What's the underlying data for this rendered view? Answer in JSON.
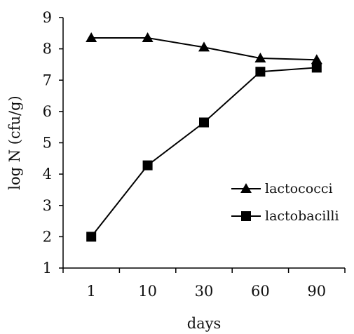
{
  "chart_data": {
    "type": "line",
    "categories": [
      "1",
      "10",
      "30",
      "60",
      "90"
    ],
    "xlabel": "days",
    "ylabel": "log N (cfu/g)",
    "ylim": [
      1,
      9
    ],
    "yticks": [
      1,
      2,
      3,
      4,
      5,
      6,
      7,
      8,
      9
    ],
    "grid": false,
    "legend_position": "right",
    "series": [
      {
        "name": "lactococci",
        "marker": "triangle",
        "color": "#000000",
        "values": [
          8.35,
          8.35,
          8.05,
          7.7,
          7.65
        ]
      },
      {
        "name": "lactobacilli",
        "marker": "square",
        "color": "#000000",
        "values": [
          2.0,
          4.28,
          5.65,
          7.27,
          7.4
        ]
      }
    ]
  }
}
